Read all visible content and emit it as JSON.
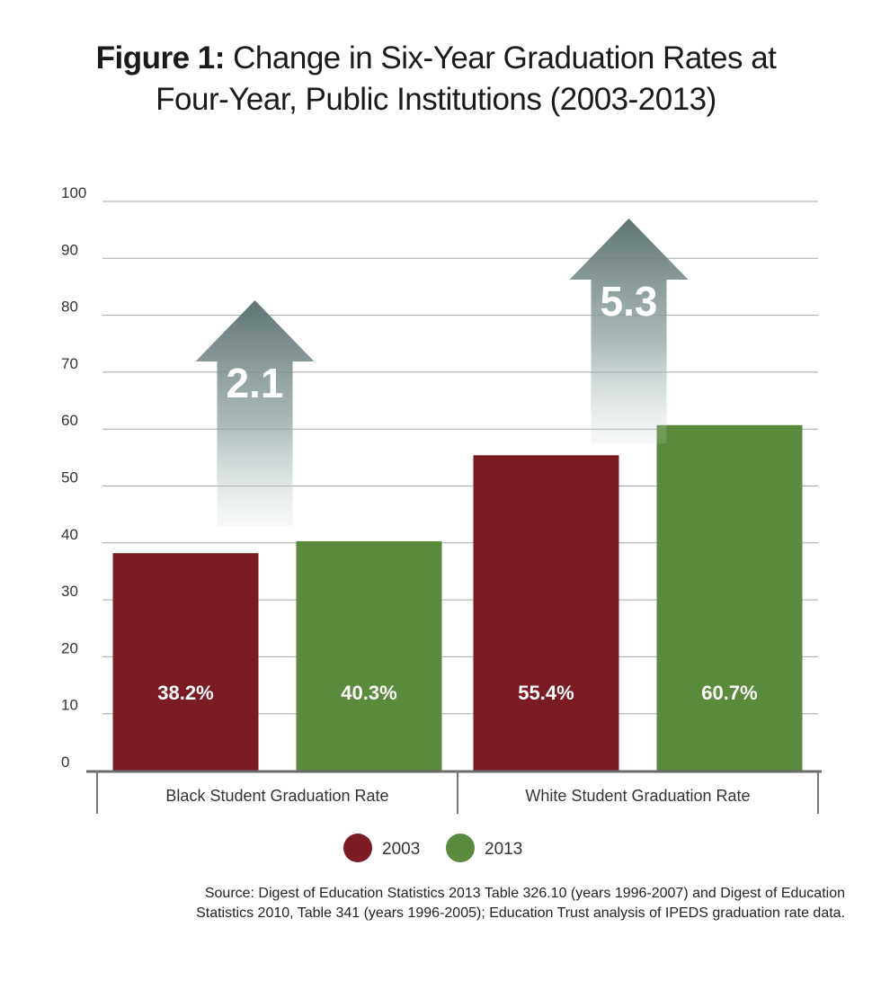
{
  "title": {
    "bold": "Figure 1:",
    "line1": "Change in Six-Year Graduation Rates at",
    "line2": "Four-Year, Public Institutions (2003-2013)"
  },
  "chart_data": {
    "type": "bar",
    "categories": [
      "Black Student Graduation Rate",
      "White Student Graduation Rate"
    ],
    "series": [
      {
        "name": "2003",
        "values": [
          38.2,
          55.4
        ],
        "labels": [
          "38.2%",
          "55.4%"
        ],
        "color": "#7b1c22"
      },
      {
        "name": "2013",
        "values": [
          40.3,
          60.7
        ],
        "labels": [
          "40.3%",
          "60.7%"
        ],
        "color": "#5a8a3c"
      }
    ],
    "changes": [
      {
        "category": "Black Student Graduation Rate",
        "label": "2.1"
      },
      {
        "category": "White Student Graduation Rate",
        "label": "5.3"
      }
    ],
    "ylim": [
      0,
      100
    ],
    "yticks": [
      0,
      10,
      20,
      30,
      40,
      50,
      60,
      70,
      80,
      90,
      100
    ],
    "grid": true,
    "legend_position": "bottom"
  },
  "source": {
    "line1": "Source: Digest of Education Statistics 2013 Table 326.10 (years 1996-2007) and Digest of Education",
    "line2": "Statistics 2010, Table 341 (years 1996-2005); Education Trust analysis of IPEDS graduation rate data."
  }
}
